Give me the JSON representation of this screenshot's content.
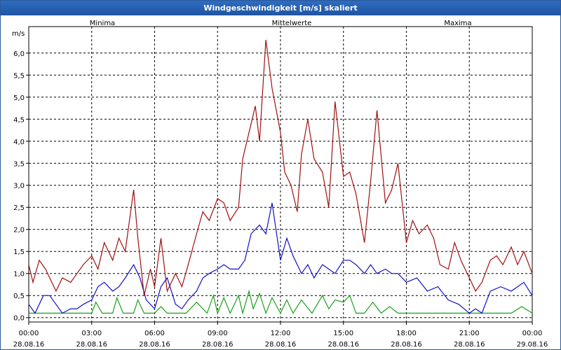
{
  "window": {
    "title": "Windgeschwindigkeit [m/s] skaliert"
  },
  "chart_data": {
    "type": "line",
    "title": "Windgeschwindigkeit [m/s] skaliert",
    "ylabel": "m/s",
    "ylim": [
      -0.1,
      6.6
    ],
    "grid": true,
    "legend_placement": "top",
    "y_ticks": [
      "0,0",
      "0,5",
      "1,0",
      "1,5",
      "2,0",
      "2,5",
      "3,0",
      "3,5",
      "4,0",
      "4,5",
      "5,0",
      "5,5",
      "6,0"
    ],
    "x_ticks": [
      {
        "time": "00:00",
        "date": "28.08.16"
      },
      {
        "time": "03:00",
        "date": "28.08.16"
      },
      {
        "time": "06:00",
        "date": "28.08.16"
      },
      {
        "time": "09:00",
        "date": "28.08.16"
      },
      {
        "time": "12:00",
        "date": "28.08.16"
      },
      {
        "time": "15:00",
        "date": "28.08.16"
      },
      {
        "time": "18:00",
        "date": "28.08.16"
      },
      {
        "time": "21:00",
        "date": "28.08.16"
      },
      {
        "time": "00:00",
        "date": "29.08.16"
      }
    ],
    "x_unit": "hours since 28.08.16 00:00",
    "series": [
      {
        "name": "Minima",
        "color": "#1aa01a",
        "x": [
          0,
          1,
          2,
          3,
          3.2,
          3.5,
          4,
          4.2,
          4.5,
          5,
          5.2,
          5.5,
          6,
          6.3,
          6.6,
          7,
          7.5,
          8,
          8.5,
          8.8,
          9,
          9.3,
          9.6,
          10,
          10.2,
          10.5,
          10.7,
          11,
          11.3,
          11.6,
          12,
          12.3,
          12.6,
          13,
          13.5,
          14,
          14.3,
          14.6,
          15,
          15.3,
          15.6,
          16,
          16.4,
          16.8,
          17.2,
          17.6,
          18,
          19,
          20,
          21,
          21.5,
          22,
          23,
          23.5,
          24
        ],
        "y": [
          0.1,
          0.1,
          0.1,
          0.1,
          0.35,
          0.1,
          0.1,
          0.45,
          0.1,
          0.1,
          0.4,
          0.1,
          0.1,
          0.25,
          0.1,
          0.1,
          0.1,
          0.35,
          0.1,
          0.5,
          0.1,
          0.45,
          0.1,
          0.5,
          0.1,
          0.6,
          0.2,
          0.55,
          0.1,
          0.45,
          0.1,
          0.4,
          0.1,
          0.4,
          0.1,
          0.5,
          0.2,
          0.4,
          0.35,
          0.5,
          0.1,
          0.1,
          0.35,
          0.1,
          0.25,
          0.1,
          0.1,
          0.1,
          0.1,
          0.1,
          0.1,
          0.1,
          0.1,
          0.25,
          0.1
        ]
      },
      {
        "name": "Mittelwerte",
        "color": "#1010c8",
        "x": [
          0,
          0.3,
          0.7,
          1,
          1.3,
          1.6,
          2,
          2.3,
          2.6,
          3,
          3.3,
          3.6,
          4,
          4.3,
          4.6,
          5,
          5.3,
          5.6,
          6,
          6.3,
          6.6,
          7,
          7.3,
          7.6,
          8,
          8.3,
          8.6,
          9,
          9.3,
          9.6,
          10,
          10.3,
          10.6,
          11,
          11.3,
          11.6,
          12,
          12.3,
          12.6,
          13,
          13.3,
          13.6,
          14,
          14.3,
          14.6,
          15,
          15.3,
          15.6,
          16,
          16.3,
          16.6,
          17,
          17.3,
          17.6,
          18,
          18.5,
          19,
          19.5,
          20,
          20.5,
          21,
          21.3,
          21.6,
          22,
          22.5,
          23,
          23.3,
          23.6,
          24
        ],
        "y": [
          0.3,
          0.1,
          0.5,
          0.5,
          0.3,
          0.1,
          0.2,
          0.2,
          0.3,
          0.4,
          0.7,
          0.8,
          0.6,
          0.7,
          0.9,
          1.2,
          0.9,
          0.4,
          0.2,
          0.7,
          0.9,
          0.3,
          0.2,
          0.4,
          0.6,
          0.9,
          1.0,
          1.1,
          1.2,
          1.1,
          1.1,
          1.3,
          1.9,
          2.1,
          1.9,
          2.6,
          1.3,
          1.8,
          1.4,
          1.0,
          1.2,
          0.9,
          1.2,
          1.1,
          1.0,
          1.3,
          1.3,
          1.2,
          1.0,
          1.2,
          1.0,
          1.1,
          1.0,
          1.0,
          0.8,
          0.9,
          0.6,
          0.7,
          0.4,
          0.3,
          0.1,
          0.2,
          0.1,
          0.6,
          0.7,
          0.6,
          0.7,
          0.8,
          0.5
        ]
      },
      {
        "name": "Maxima",
        "color": "#a01010",
        "x": [
          0,
          0.2,
          0.5,
          0.8,
          1,
          1.3,
          1.6,
          2,
          2.3,
          2.6,
          3,
          3.3,
          3.6,
          4,
          4.3,
          4.6,
          5,
          5.2,
          5.5,
          5.8,
          6,
          6.3,
          6.6,
          7,
          7.3,
          7.6,
          8,
          8.3,
          8.6,
          9,
          9.3,
          9.6,
          10,
          10.2,
          10.5,
          10.8,
          11,
          11.3,
          11.6,
          12,
          12.2,
          12.5,
          12.8,
          13,
          13.3,
          13.6,
          14,
          14.3,
          14.6,
          15,
          15.3,
          15.6,
          16,
          16.3,
          16.6,
          17,
          17.3,
          17.6,
          18,
          18.3,
          18.6,
          19,
          19.3,
          19.6,
          20,
          20.3,
          20.6,
          21,
          21.3,
          21.6,
          22,
          22.3,
          22.6,
          23,
          23.3,
          23.6,
          24
        ],
        "y": [
          1.2,
          0.8,
          1.3,
          1.1,
          0.9,
          0.6,
          0.9,
          0.8,
          1.0,
          1.2,
          1.4,
          1.1,
          1.7,
          1.3,
          1.8,
          1.5,
          2.9,
          1.8,
          0.5,
          1.1,
          0.7,
          1.8,
          0.6,
          1.0,
          0.7,
          1.2,
          1.9,
          2.4,
          2.2,
          2.7,
          2.6,
          2.2,
          2.5,
          3.6,
          4.2,
          4.8,
          4.0,
          6.3,
          5.2,
          4.2,
          3.3,
          3.0,
          2.4,
          3.7,
          4.5,
          3.6,
          3.3,
          2.5,
          4.9,
          3.2,
          3.3,
          2.8,
          1.7,
          3.1,
          4.7,
          2.6,
          2.9,
          3.5,
          1.7,
          2.2,
          1.9,
          2.1,
          1.8,
          1.2,
          1.1,
          1.7,
          1.3,
          0.9,
          0.6,
          0.8,
          1.3,
          1.4,
          1.2,
          1.6,
          1.2,
          1.5,
          1.0
        ]
      }
    ]
  }
}
